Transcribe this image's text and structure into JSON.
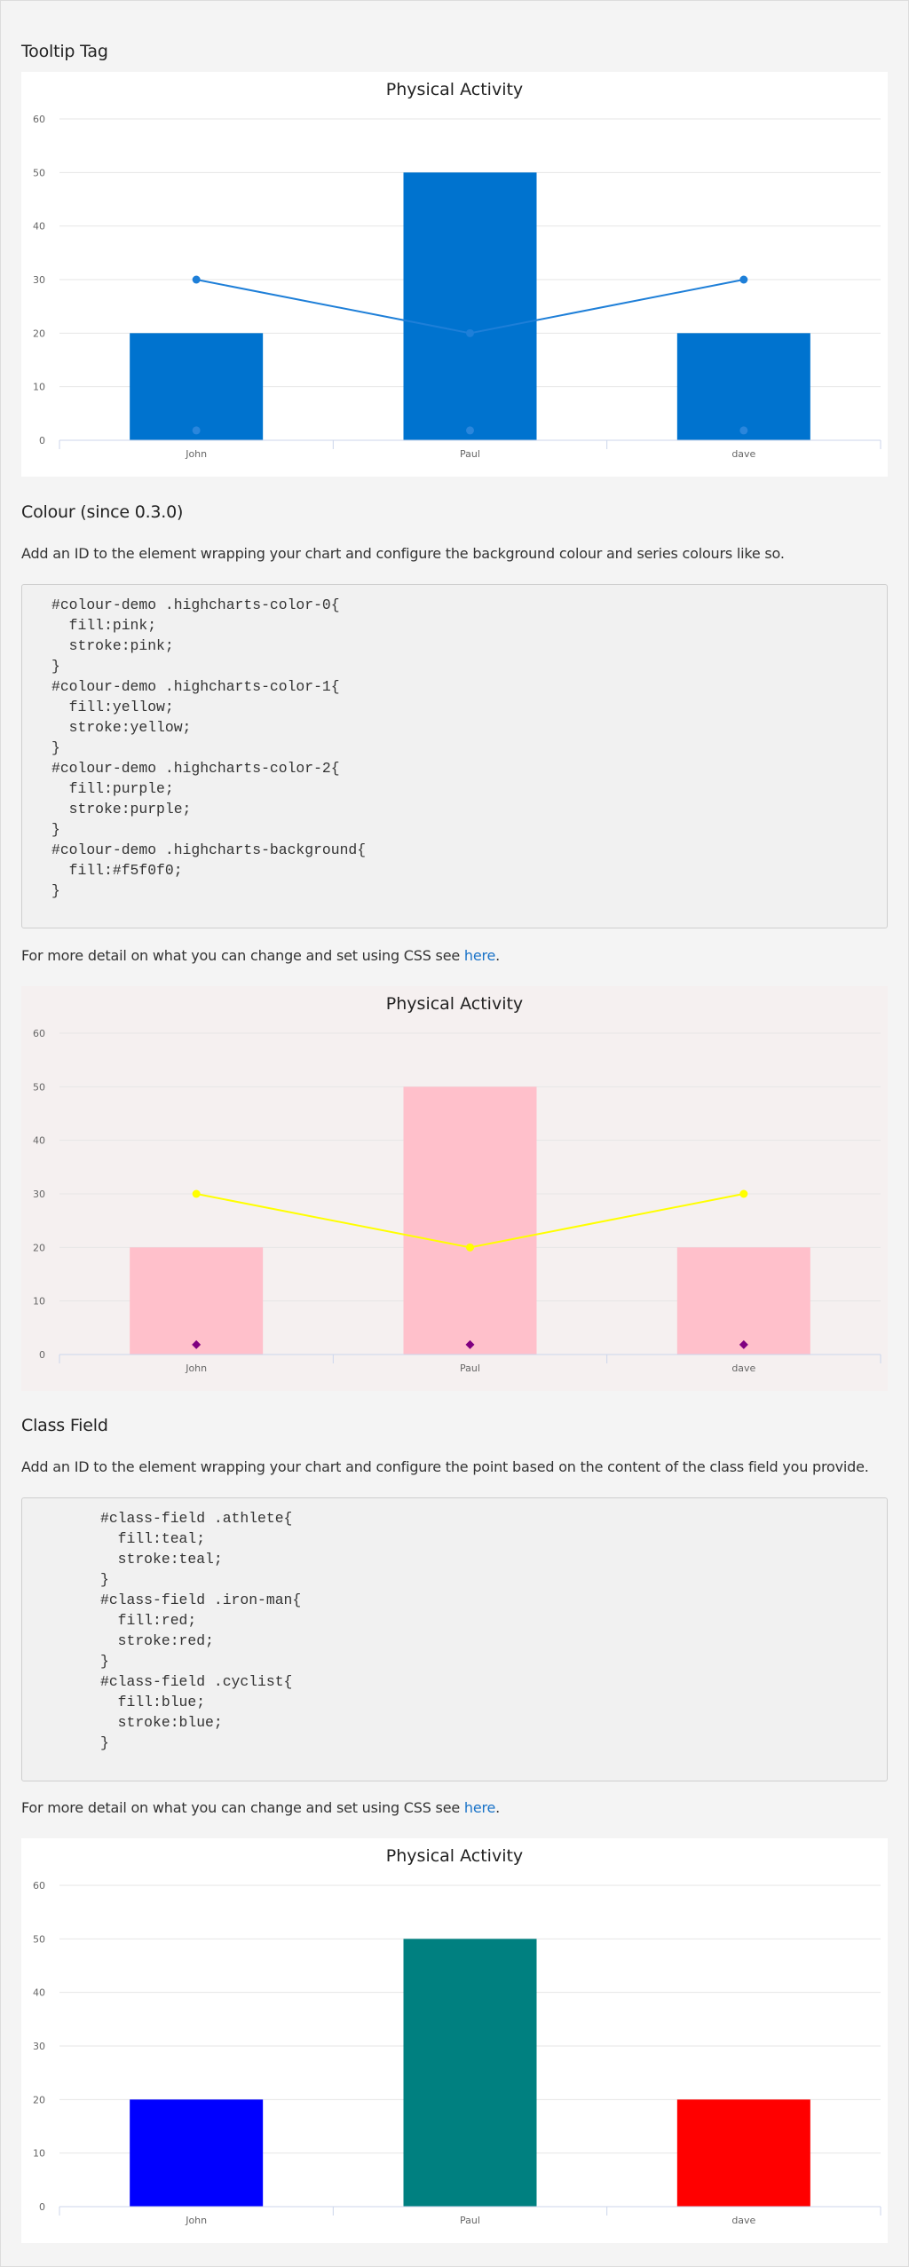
{
  "sections": {
    "tooltip": {
      "title": "Tooltip Tag"
    },
    "colour": {
      "title": "Colour (since 0.3.0)",
      "intro": "Add an ID to the element wrapping your chart and configure the background colour and series colours like so.",
      "code": "#colour-demo .highcharts-color-0{\n  fill:pink;\n  stroke:pink;\n}\n#colour-demo .highcharts-color-1{\n  fill:yellow;\n  stroke:yellow;\n}\n#colour-demo .highcharts-color-2{\n  fill:purple;\n  stroke:purple;\n}\n#colour-demo .highcharts-background{\n  fill:#f5f0f0;\n}",
      "more_prefix": "For more detail on what you can change and set using CSS see ",
      "more_link": "here",
      "more_suffix": "."
    },
    "classfield": {
      "title": "Class Field",
      "intro": "Add an ID to the element wrapping your chart and configure the point based on the content of the class field you provide.",
      "code": "#class-field .athlete{\n  fill:teal;\n  stroke:teal;\n}\n#class-field .iron-man{\n  fill:red;\n  stroke:red;\n}\n#class-field .cyclist{\n  fill:blue;\n  stroke:blue;\n}",
      "more_prefix": "For more detail on what you can change and set using CSS see ",
      "more_link": "here",
      "more_suffix": "."
    }
  },
  "chart_data": [
    {
      "type": "bar",
      "title": "Physical Activity",
      "categories": [
        "John",
        "Paul",
        "dave"
      ],
      "ylim": [
        0,
        60
      ],
      "yticks": [
        0,
        10,
        20,
        30,
        40,
        50,
        60
      ],
      "grid": true,
      "background": "#ffffff",
      "series": [
        {
          "type": "column",
          "values": [
            20,
            50,
            20
          ],
          "color": "#0073cf"
        },
        {
          "type": "line",
          "values": [
            30,
            20,
            30
          ],
          "color": "#1e7fd8"
        },
        {
          "type": "scatter",
          "values": [
            2,
            2,
            2
          ],
          "color": "#2a86dc",
          "marker": "circle"
        }
      ]
    },
    {
      "type": "bar",
      "title": "Physical Activity",
      "categories": [
        "John",
        "Paul",
        "dave"
      ],
      "ylim": [
        0,
        60
      ],
      "yticks": [
        0,
        10,
        20,
        30,
        40,
        50,
        60
      ],
      "grid": true,
      "background": "#f5f0f0",
      "series": [
        {
          "type": "column",
          "values": [
            20,
            50,
            20
          ],
          "color": "pink"
        },
        {
          "type": "line",
          "values": [
            30,
            20,
            30
          ],
          "color": "yellow"
        },
        {
          "type": "scatter",
          "values": [
            2,
            2,
            2
          ],
          "color": "purple",
          "marker": "diamond"
        }
      ]
    },
    {
      "type": "bar",
      "title": "Physical Activity",
      "categories": [
        "John",
        "Paul",
        "dave"
      ],
      "ylim": [
        0,
        60
      ],
      "yticks": [
        0,
        10,
        20,
        30,
        40,
        50,
        60
      ],
      "grid": true,
      "background": "#ffffff",
      "series": [
        {
          "type": "column",
          "values": [
            20,
            50,
            20
          ],
          "colors": [
            "blue",
            "teal",
            "red"
          ]
        }
      ]
    }
  ]
}
